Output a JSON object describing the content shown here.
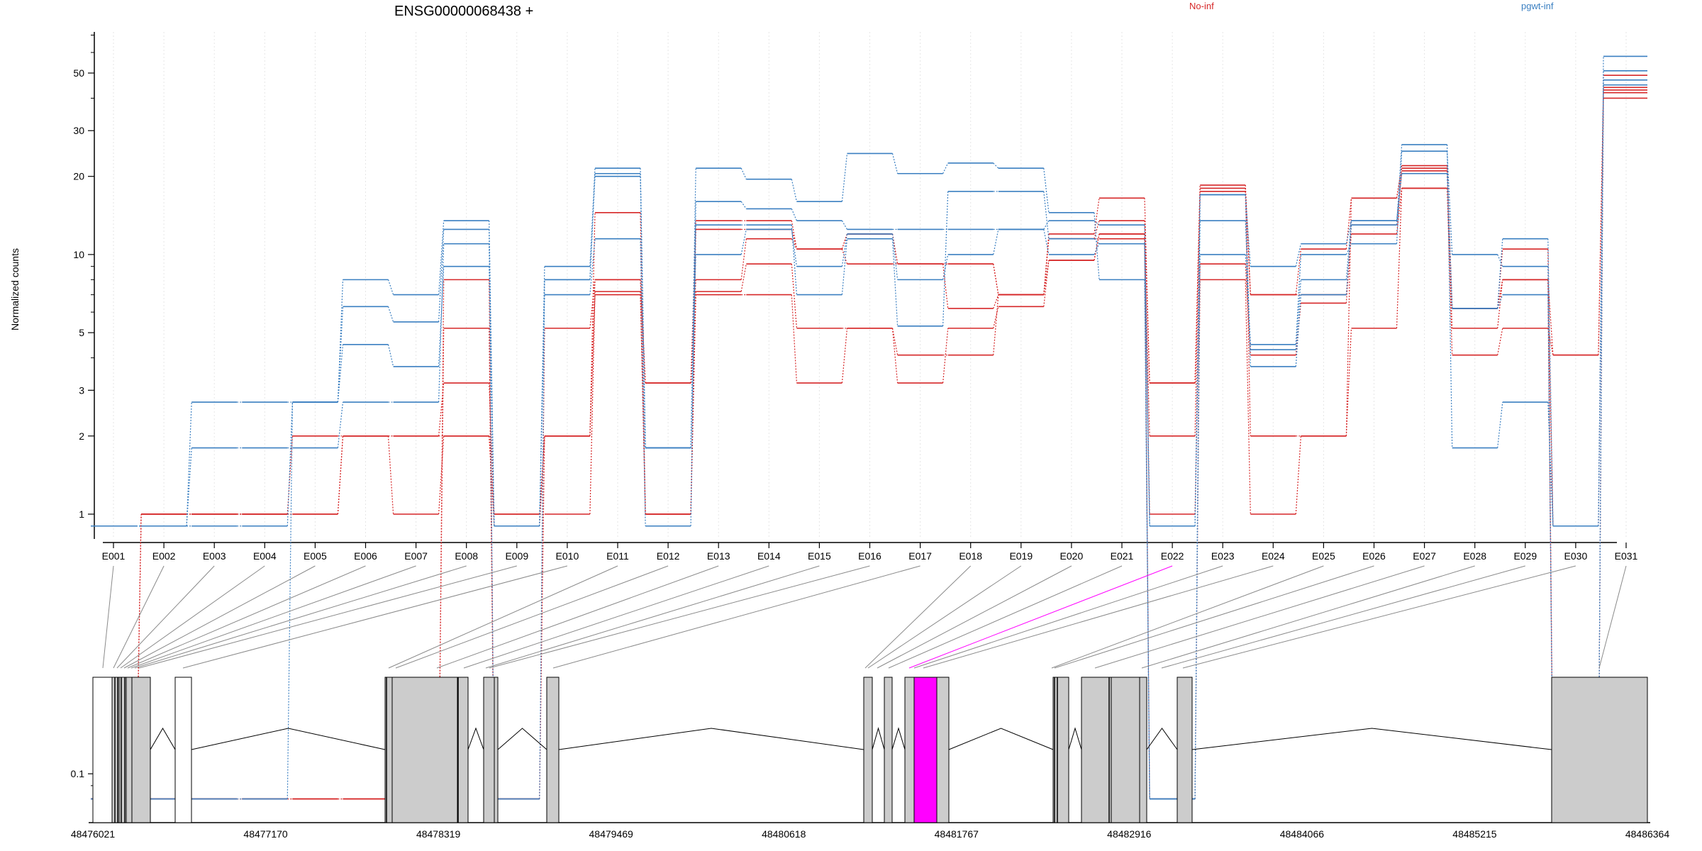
{
  "chart_data": {
    "type": "line",
    "title": "ENSG00000068438 +",
    "ylabel": "Normalized counts",
    "yscale": "log",
    "ylim": [
      0.08,
      80
    ],
    "yticks": [
      0.1,
      1,
      2,
      3,
      5,
      10,
      20,
      30,
      50
    ],
    "grid": true,
    "legend_position": "top",
    "categories": [
      "E001",
      "E002",
      "E003",
      "E004",
      "E005",
      "E006",
      "E007",
      "E008",
      "E009",
      "E010",
      "E011",
      "E012",
      "E013",
      "E014",
      "E015",
      "E016",
      "E017",
      "E018",
      "E019",
      "E020",
      "E021",
      "E022",
      "E023",
      "E024",
      "E025",
      "E026",
      "E027",
      "E028",
      "E029",
      "E030",
      "E031"
    ],
    "legend": [
      {
        "label": "No-inf",
        "color": "#d62728"
      },
      {
        "label": "pgwt-inf",
        "color": "#3a7fc1"
      }
    ],
    "series": [
      {
        "group": "No-inf",
        "color": "#d62728",
        "values": [
          0.08,
          1.0,
          1.0,
          1.0,
          1.0,
          2.0,
          2.0,
          3.2,
          1.0,
          2.0,
          7.0,
          1.0,
          7.0,
          7.0,
          3.2,
          5.2,
          3.2,
          5.2,
          6.3,
          9.5,
          12,
          0.08,
          8.0,
          1.0,
          2.0,
          5.2,
          18,
          4.1,
          5.2,
          4.1,
          43
        ]
      },
      {
        "group": "No-inf",
        "color": "#d62728",
        "values": [
          0.08,
          1.0,
          1.0,
          1.0,
          1.0,
          2.0,
          1.0,
          2.0,
          1.0,
          1.0,
          7.2,
          1.0,
          7.2,
          9.2,
          5.2,
          5.2,
          4.1,
          4.1,
          7.0,
          9.5,
          12,
          1.0,
          9.2,
          4.1,
          6.5,
          12,
          18,
          5.2,
          8.0,
          4.1,
          42
        ]
      },
      {
        "group": "No-inf",
        "color": "#d62728",
        "values": [
          0.08,
          0.08,
          0.08,
          0.08,
          0.08,
          0.08,
          0.08,
          5.2,
          0.08,
          5.2,
          8.0,
          3.2,
          8.0,
          11.5,
          10.5,
          9.2,
          9.2,
          9.2,
          7.0,
          11.5,
          11.5,
          2.0,
          17.5,
          7.0,
          7.0,
          13,
          21,
          6.2,
          10.5,
          0.08,
          44
        ]
      },
      {
        "group": "No-inf",
        "color": "#d62728",
        "values": [
          0.08,
          0.08,
          0.08,
          0.08,
          0.08,
          0.08,
          0.08,
          8.0,
          0.08,
          2.0,
          14.5,
          1.0,
          12.5,
          12.5,
          10.5,
          12,
          9.2,
          6.2,
          7.0,
          11.5,
          13.5,
          3.2,
          18.5,
          7.0,
          10.5,
          16.5,
          21.5,
          6.2,
          8.0,
          0.08,
          49
        ]
      },
      {
        "group": "No-inf",
        "color": "#d62728",
        "values": [
          0.08,
          1.0,
          1.0,
          1.0,
          2.0,
          2.0,
          2.0,
          2.0,
          0.9,
          2.0,
          8.0,
          3.2,
          13.5,
          13.5,
          10.5,
          12,
          9.2,
          9.2,
          7.0,
          12,
          16.5,
          3.2,
          18,
          2.0,
          2.0,
          16.5,
          22,
          6.2,
          8.0,
          0.9,
          40
        ]
      },
      {
        "group": "pgwt-inf",
        "color": "#3a7fc1",
        "values": [
          0.9,
          0.9,
          0.9,
          0.9,
          2.7,
          4.5,
          3.7,
          9.0,
          0.9,
          8.0,
          20,
          1.8,
          10,
          12.5,
          9.0,
          12,
          8.0,
          10,
          12.5,
          10,
          11,
          0.08,
          10,
          4.5,
          10,
          11,
          25,
          10,
          9.0,
          0.08,
          51
        ]
      },
      {
        "group": "pgwt-inf",
        "color": "#3a7fc1",
        "values": [
          0.9,
          0.9,
          1.8,
          1.8,
          1.8,
          2.7,
          2.7,
          11,
          0.9,
          7.0,
          11.5,
          0.9,
          16,
          15,
          13.5,
          12.5,
          12.5,
          12.5,
          12.5,
          13.5,
          13,
          0.9,
          13.5,
          4.3,
          8.0,
          13.5,
          20.5,
          6.2,
          7.0,
          0.08,
          58
        ]
      },
      {
        "group": "pgwt-inf",
        "color": "#3a7fc1",
        "values": [
          0.08,
          0.08,
          0.08,
          0.08,
          2.7,
          6.3,
          5.5,
          12.5,
          0.08,
          8.0,
          20.5,
          1.8,
          21.5,
          19.5,
          16,
          24.5,
          20.5,
          22.5,
          21.5,
          14.5,
          8.0,
          0.08,
          17,
          3.7,
          7.0,
          13,
          26.5,
          1.8,
          2.7,
          0.9,
          45
        ]
      },
      {
        "group": "pgwt-inf",
        "color": "#3a7fc1",
        "values": [
          0.9,
          0.9,
          2.7,
          2.7,
          2.7,
          8.0,
          7.0,
          13.5,
          0.9,
          9.0,
          21.5,
          1.8,
          13,
          13,
          7.0,
          11.5,
          5.3,
          17.5,
          17.5,
          11.5,
          11,
          0.9,
          17,
          9.0,
          11,
          13.5,
          20.5,
          6.2,
          11.5,
          0.9,
          47
        ]
      }
    ]
  },
  "gene_model": {
    "coordinate_labels": [
      "48476021",
      "48477170",
      "48478319",
      "48479469",
      "48480618",
      "48481767",
      "48482916",
      "48484066",
      "48485215",
      "48486364"
    ],
    "highlight_color": "#ff00ff",
    "highlight_exon": "E022"
  }
}
